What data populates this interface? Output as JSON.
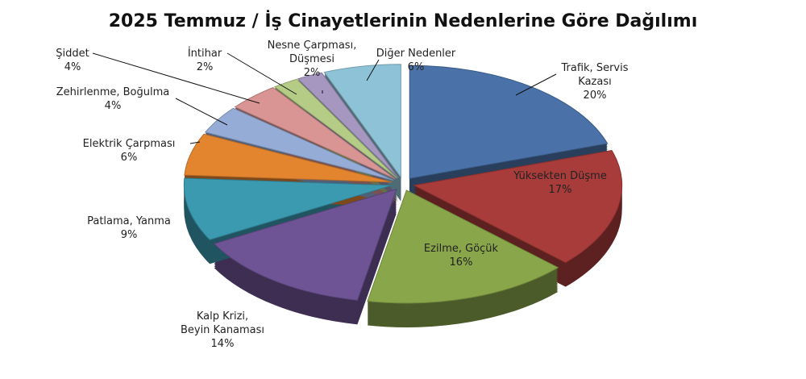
{
  "chart_data": {
    "type": "pie",
    "title": "2025 Temmuz / İş Cinayetlerinin Nedenlerine Göre Dağılımı",
    "categories": [
      "Trafik, Servis\nKazası",
      "Yüksekten Düşme",
      "Ezilme, Göçük",
      "Kalp Krizi,\nBeyin Kanaması",
      "Patlama, Yanma",
      "Elektrik Çarpması",
      "Zehirlenme, Boğulma",
      "Şiddet",
      "İntihar",
      "Nesne Çarpması,\nDüşmesi",
      "Diğer Nedenler"
    ],
    "values": [
      20,
      17,
      16,
      14,
      9,
      6,
      4,
      4,
      2,
      2,
      6
    ],
    "value_labels": [
      "20%",
      "17%",
      "16%",
      "14%",
      "9%",
      "6%",
      "4%",
      "4%",
      "2%",
      "2%",
      "6%"
    ],
    "colors": [
      "#4a72a8",
      "#a83c3a",
      "#89a64a",
      "#6e5495",
      "#3b99b0",
      "#e3852f",
      "#95acd7",
      "#d89594",
      "#b5cc87",
      "#a597c0",
      "#8ec3d7"
    ]
  }
}
